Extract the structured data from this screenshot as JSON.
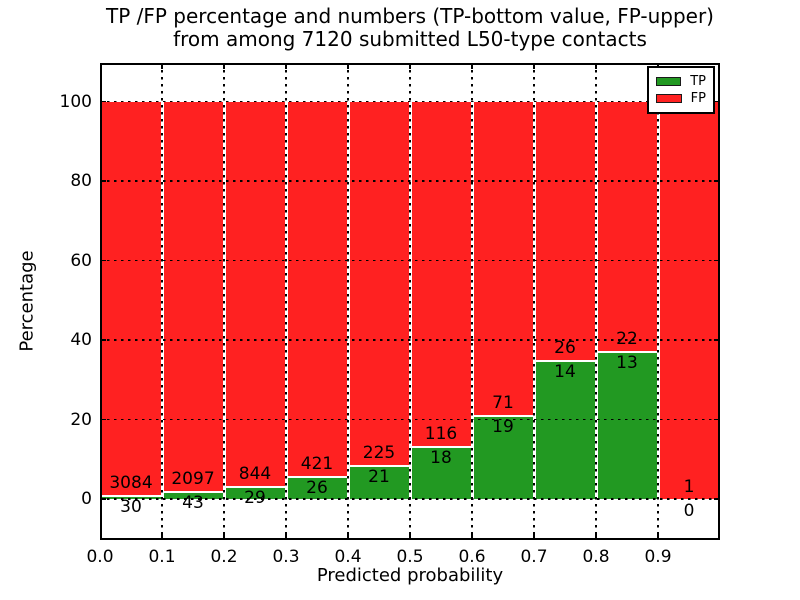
{
  "title": {
    "line1": "TP /FP percentage and numbers (TP-bottom value, FP-upper)",
    "line2": "from among 7120 submitted L50-type contacts"
  },
  "chart_data": {
    "type": "bar",
    "stacked": true,
    "title": "TP /FP percentage and numbers (TP-bottom value, FP-upper)\nfrom among 7120 submitted L50-type contacts",
    "xlabel": "Predicted probability",
    "ylabel": "Percentage",
    "categories": [
      "0.0",
      "0.1",
      "0.2",
      "0.3",
      "0.4",
      "0.5",
      "0.6",
      "0.7",
      "0.8",
      "0.9"
    ],
    "bin_width": 0.1,
    "xlim": [
      0.0,
      1.0
    ],
    "ylim": [
      -10,
      110
    ],
    "yticks": [
      0,
      20,
      40,
      60,
      80,
      100
    ],
    "ytick_labels": [
      "0",
      "20",
      "40",
      "60",
      "80",
      "100"
    ],
    "grid": "dotted",
    "legend_position": "upper right",
    "total_submitted": 7120,
    "series": [
      {
        "name": "TP",
        "color": "#229922",
        "counts": [
          30,
          43,
          29,
          26,
          21,
          18,
          19,
          14,
          13,
          0
        ]
      },
      {
        "name": "FP",
        "color": "#ff2121",
        "counts": [
          3084,
          2097,
          844,
          421,
          225,
          116,
          71,
          26,
          22,
          1
        ]
      }
    ],
    "tp_percent": [
      0.96,
      2.01,
      3.32,
      5.82,
      8.54,
      13.43,
      21.11,
      35.0,
      37.14,
      0.0
    ],
    "bar_label_offset_pct": 3
  },
  "colors": {
    "tp_green": "#229922",
    "fp_red": "#ff2121",
    "grid": "#000000",
    "background": "#ffffff"
  }
}
